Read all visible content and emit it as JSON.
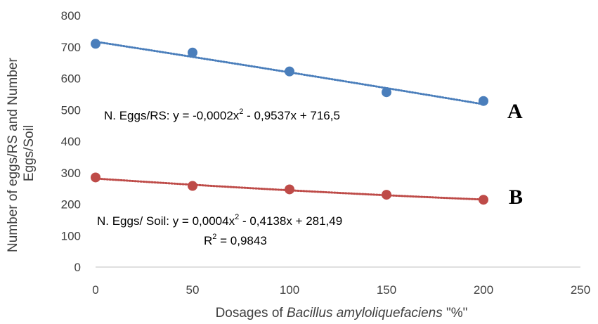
{
  "chart_data": {
    "type": "scatter",
    "xlabel": {
      "prefix": "Dosages of ",
      "italic": "Bacillus amyloliquefaciens",
      "suffix": " \"%\""
    },
    "ylabel": {
      "line1": "Number of eggs/RS and Number",
      "line2": "Eggs/Soil"
    },
    "xlim": [
      0,
      250
    ],
    "ylim": [
      0,
      800
    ],
    "xticks": [
      "0",
      "50",
      "100",
      "150",
      "200",
      "250"
    ],
    "yticks": [
      "0",
      "100",
      "200",
      "300",
      "400",
      "500",
      "600",
      "700",
      "800"
    ],
    "grid": false,
    "series": [
      {
        "letter": "A",
        "color": "#4a7ebb",
        "x": [
          0,
          50,
          100,
          150,
          200
        ],
        "y": [
          710,
          682,
          622,
          556,
          528
        ],
        "trendline": {
          "a": -0.0002,
          "b": -0.9537,
          "c": 716.5
        },
        "equation": {
          "part1": "N. Eggs/RS: y = -0,0002x",
          "sup": "2",
          "part2": " - 0,9537x + 716,5"
        }
      },
      {
        "letter": "B",
        "color": "#be4b48",
        "x": [
          0,
          50,
          100,
          150,
          200
        ],
        "y": [
          285,
          258,
          247,
          230,
          214
        ],
        "trendline": {
          "a": 0.0004,
          "b": -0.4138,
          "c": 281.49
        },
        "equation": {
          "part1": "N. Eggs/ Soil: y = 0,0004x",
          "sup": "2",
          "part2": " - 0,4138x + 281,49"
        },
        "r2": {
          "part1": "R",
          "sup": "2",
          "part2": " = 0,9843"
        }
      }
    ]
  }
}
